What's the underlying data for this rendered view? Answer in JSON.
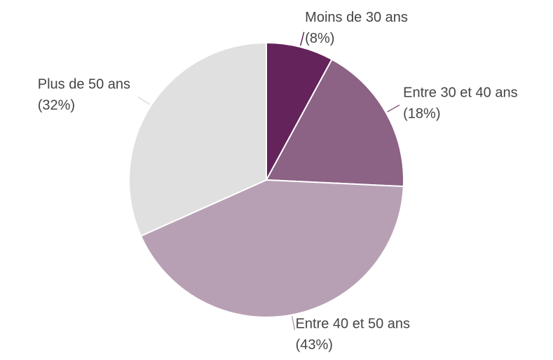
{
  "chart_data": {
    "type": "pie",
    "categories": [
      "Moins de 30 ans",
      "Entre 30 et 40 ans",
      "Entre 40 et 50 ans",
      "Plus de 50 ans"
    ],
    "values": [
      8,
      18,
      43,
      32
    ],
    "value_labels": [
      "(8%)",
      "(18%)",
      "(43%)",
      "(32%)"
    ],
    "colors": [
      "#64235a",
      "#8c6285",
      "#b8a0b4",
      "#e0e0e0"
    ]
  }
}
